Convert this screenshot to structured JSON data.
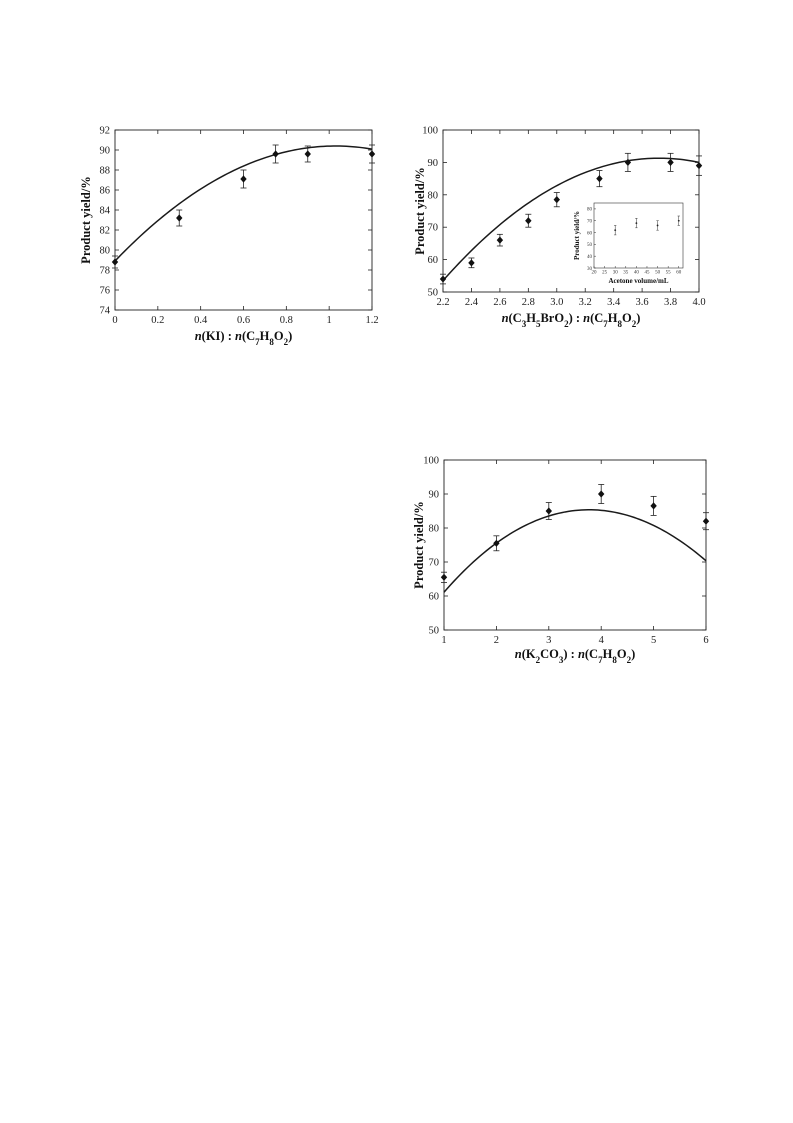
{
  "chart_data": [
    {
      "id": "kI",
      "type": "scatter",
      "title": "",
      "ylabel": "Product yield/%",
      "xlabel": {
        "parts": [
          {
            "t": "n",
            "i": true
          },
          {
            "t": "(KI) : "
          },
          {
            "t": "n",
            "i": true
          },
          {
            "t": "(C"
          },
          {
            "t": "7",
            "sub": true
          },
          {
            "t": "H"
          },
          {
            "t": "8",
            "sub": true
          },
          {
            "t": "O"
          },
          {
            "t": "2",
            "sub": true
          },
          {
            "t": ")"
          }
        ]
      },
      "xlim": [
        0,
        1.2
      ],
      "ylim": [
        74,
        92
      ],
      "xticks": [
        0,
        0.2,
        0.4,
        0.6,
        0.8,
        1,
        1.2
      ],
      "xtick_labels": [
        "0",
        "0.2",
        "0.4",
        "0.6",
        "0.8",
        "1",
        "1.2"
      ],
      "yticks": [
        74,
        76,
        78,
        80,
        82,
        84,
        86,
        88,
        90,
        92
      ],
      "ytick_labels": [
        "74",
        "76",
        "78",
        "80",
        "82",
        "84",
        "86",
        "88",
        "90",
        "92"
      ],
      "points": [
        {
          "x": 0,
          "y": 78.8,
          "err": 0.6
        },
        {
          "x": 0.3,
          "y": 83.2,
          "err": 0.8
        },
        {
          "x": 0.6,
          "y": 87.1,
          "err": 0.9
        },
        {
          "x": 0.75,
          "y": 89.6,
          "err": 0.9
        },
        {
          "x": 0.9,
          "y": 89.6,
          "err": 0.8
        },
        {
          "x": 1.2,
          "y": 89.6,
          "err": 0.9
        }
      ],
      "fit": {
        "xmin": 0,
        "xmax": 1.2,
        "peak_x": 1.03,
        "peak_y": 90.4,
        "start_y": 78.9
      },
      "grid": false,
      "legend": "none"
    },
    {
      "id": "bromo",
      "type": "scatter",
      "title": "",
      "ylabel": "Product yield/%",
      "xlabel": {
        "parts": [
          {
            "t": "n",
            "i": true
          },
          {
            "t": "(C"
          },
          {
            "t": "3",
            "sub": true
          },
          {
            "t": "H"
          },
          {
            "t": "5",
            "sub": true
          },
          {
            "t": "BrO"
          },
          {
            "t": "2",
            "sub": true
          },
          {
            "t": ") : "
          },
          {
            "t": "n",
            "i": true
          },
          {
            "t": "(C"
          },
          {
            "t": "7",
            "sub": true
          },
          {
            "t": "H"
          },
          {
            "t": "8",
            "sub": true
          },
          {
            "t": "O"
          },
          {
            "t": "2",
            "sub": true
          },
          {
            "t": ")"
          }
        ]
      },
      "xlim": [
        2.2,
        4.0
      ],
      "ylim": [
        50,
        100
      ],
      "xticks": [
        2.2,
        2.4,
        2.6,
        2.8,
        3.0,
        3.2,
        3.4,
        3.6,
        3.8,
        4.0
      ],
      "xtick_labels": [
        "2.2",
        "2.4",
        "2.6",
        "2.8",
        "3.0",
        "3.2",
        "3.4",
        "3.6",
        "3.8",
        "4.0"
      ],
      "yticks": [
        50,
        60,
        70,
        80,
        90,
        100
      ],
      "ytick_labels": [
        "50",
        "60",
        "70",
        "80",
        "90",
        "100"
      ],
      "points": [
        {
          "x": 2.2,
          "y": 54.0,
          "err": 1.5
        },
        {
          "x": 2.4,
          "y": 59.0,
          "err": 1.5
        },
        {
          "x": 2.6,
          "y": 66.0,
          "err": 1.8
        },
        {
          "x": 2.8,
          "y": 72.0,
          "err": 2.0
        },
        {
          "x": 3.0,
          "y": 78.5,
          "err": 2.2
        },
        {
          "x": 3.3,
          "y": 85.0,
          "err": 2.5
        },
        {
          "x": 3.5,
          "y": 90.0,
          "err": 2.8
        },
        {
          "x": 3.8,
          "y": 90.0,
          "err": 2.8
        },
        {
          "x": 4.0,
          "y": 89.0,
          "err": 3.0
        }
      ],
      "fit": {
        "xmin": 2.2,
        "xmax": 4.0,
        "peak_x": 3.72,
        "peak_y": 91.3,
        "start_y": 53.5
      },
      "grid": false,
      "legend": "none",
      "inset": {
        "ylabel": "Product yield/%",
        "xlabel": "Acetone volume/mL",
        "xlim": [
          20,
          62
        ],
        "ylim": [
          30,
          85
        ],
        "xticks": [
          20,
          25,
          30,
          35,
          40,
          45,
          50,
          55,
          60
        ],
        "xtick_labels": [
          "20",
          "25",
          "30",
          "35",
          "40",
          "45",
          "50",
          "55",
          "60"
        ],
        "yticks": [
          30,
          40,
          50,
          60,
          70,
          80
        ],
        "ytick_labels": [
          "30",
          "40",
          "50",
          "60",
          "70",
          "80"
        ],
        "points": [
          {
            "x": 30,
            "y": 62,
            "err": 4
          },
          {
            "x": 40,
            "y": 68,
            "err": 4
          },
          {
            "x": 50,
            "y": 66,
            "err": 4
          },
          {
            "x": 60,
            "y": 70,
            "err": 4
          }
        ]
      }
    },
    {
      "id": "k2co3",
      "type": "scatter",
      "title": "",
      "ylabel": "Product yield/%",
      "xlabel": {
        "parts": [
          {
            "t": "n",
            "i": true
          },
          {
            "t": "(K"
          },
          {
            "t": "2",
            "sub": true
          },
          {
            "t": "CO"
          },
          {
            "t": "3",
            "sub": true
          },
          {
            "t": ") : "
          },
          {
            "t": "n",
            "i": true
          },
          {
            "t": "(C"
          },
          {
            "t": "7",
            "sub": true
          },
          {
            "t": "H"
          },
          {
            "t": "8",
            "sub": true
          },
          {
            "t": "O"
          },
          {
            "t": "2",
            "sub": true
          },
          {
            "t": ")"
          }
        ]
      },
      "xlim": [
        1,
        6
      ],
      "ylim": [
        50,
        100
      ],
      "xticks": [
        1,
        2,
        3,
        4,
        5,
        6
      ],
      "xtick_labels": [
        "1",
        "2",
        "3",
        "4",
        "5",
        "6"
      ],
      "yticks": [
        50,
        60,
        70,
        80,
        90,
        100
      ],
      "ytick_labels": [
        "50",
        "60",
        "70",
        "80",
        "90",
        "100"
      ],
      "points": [
        {
          "x": 1,
          "y": 65.5,
          "err": 1.5
        },
        {
          "x": 2,
          "y": 75.5,
          "err": 2.2
        },
        {
          "x": 3,
          "y": 85.0,
          "err": 2.5
        },
        {
          "x": 4,
          "y": 90.0,
          "err": 2.8
        },
        {
          "x": 5,
          "y": 86.5,
          "err": 2.8
        },
        {
          "x": 6,
          "y": 82.0,
          "err": 2.5
        }
      ],
      "fit": {
        "type": "poly3",
        "coef": [
          40.0,
          24.5,
          -3.42,
          0.03
        ]
      },
      "grid": false,
      "legend": "none"
    }
  ]
}
